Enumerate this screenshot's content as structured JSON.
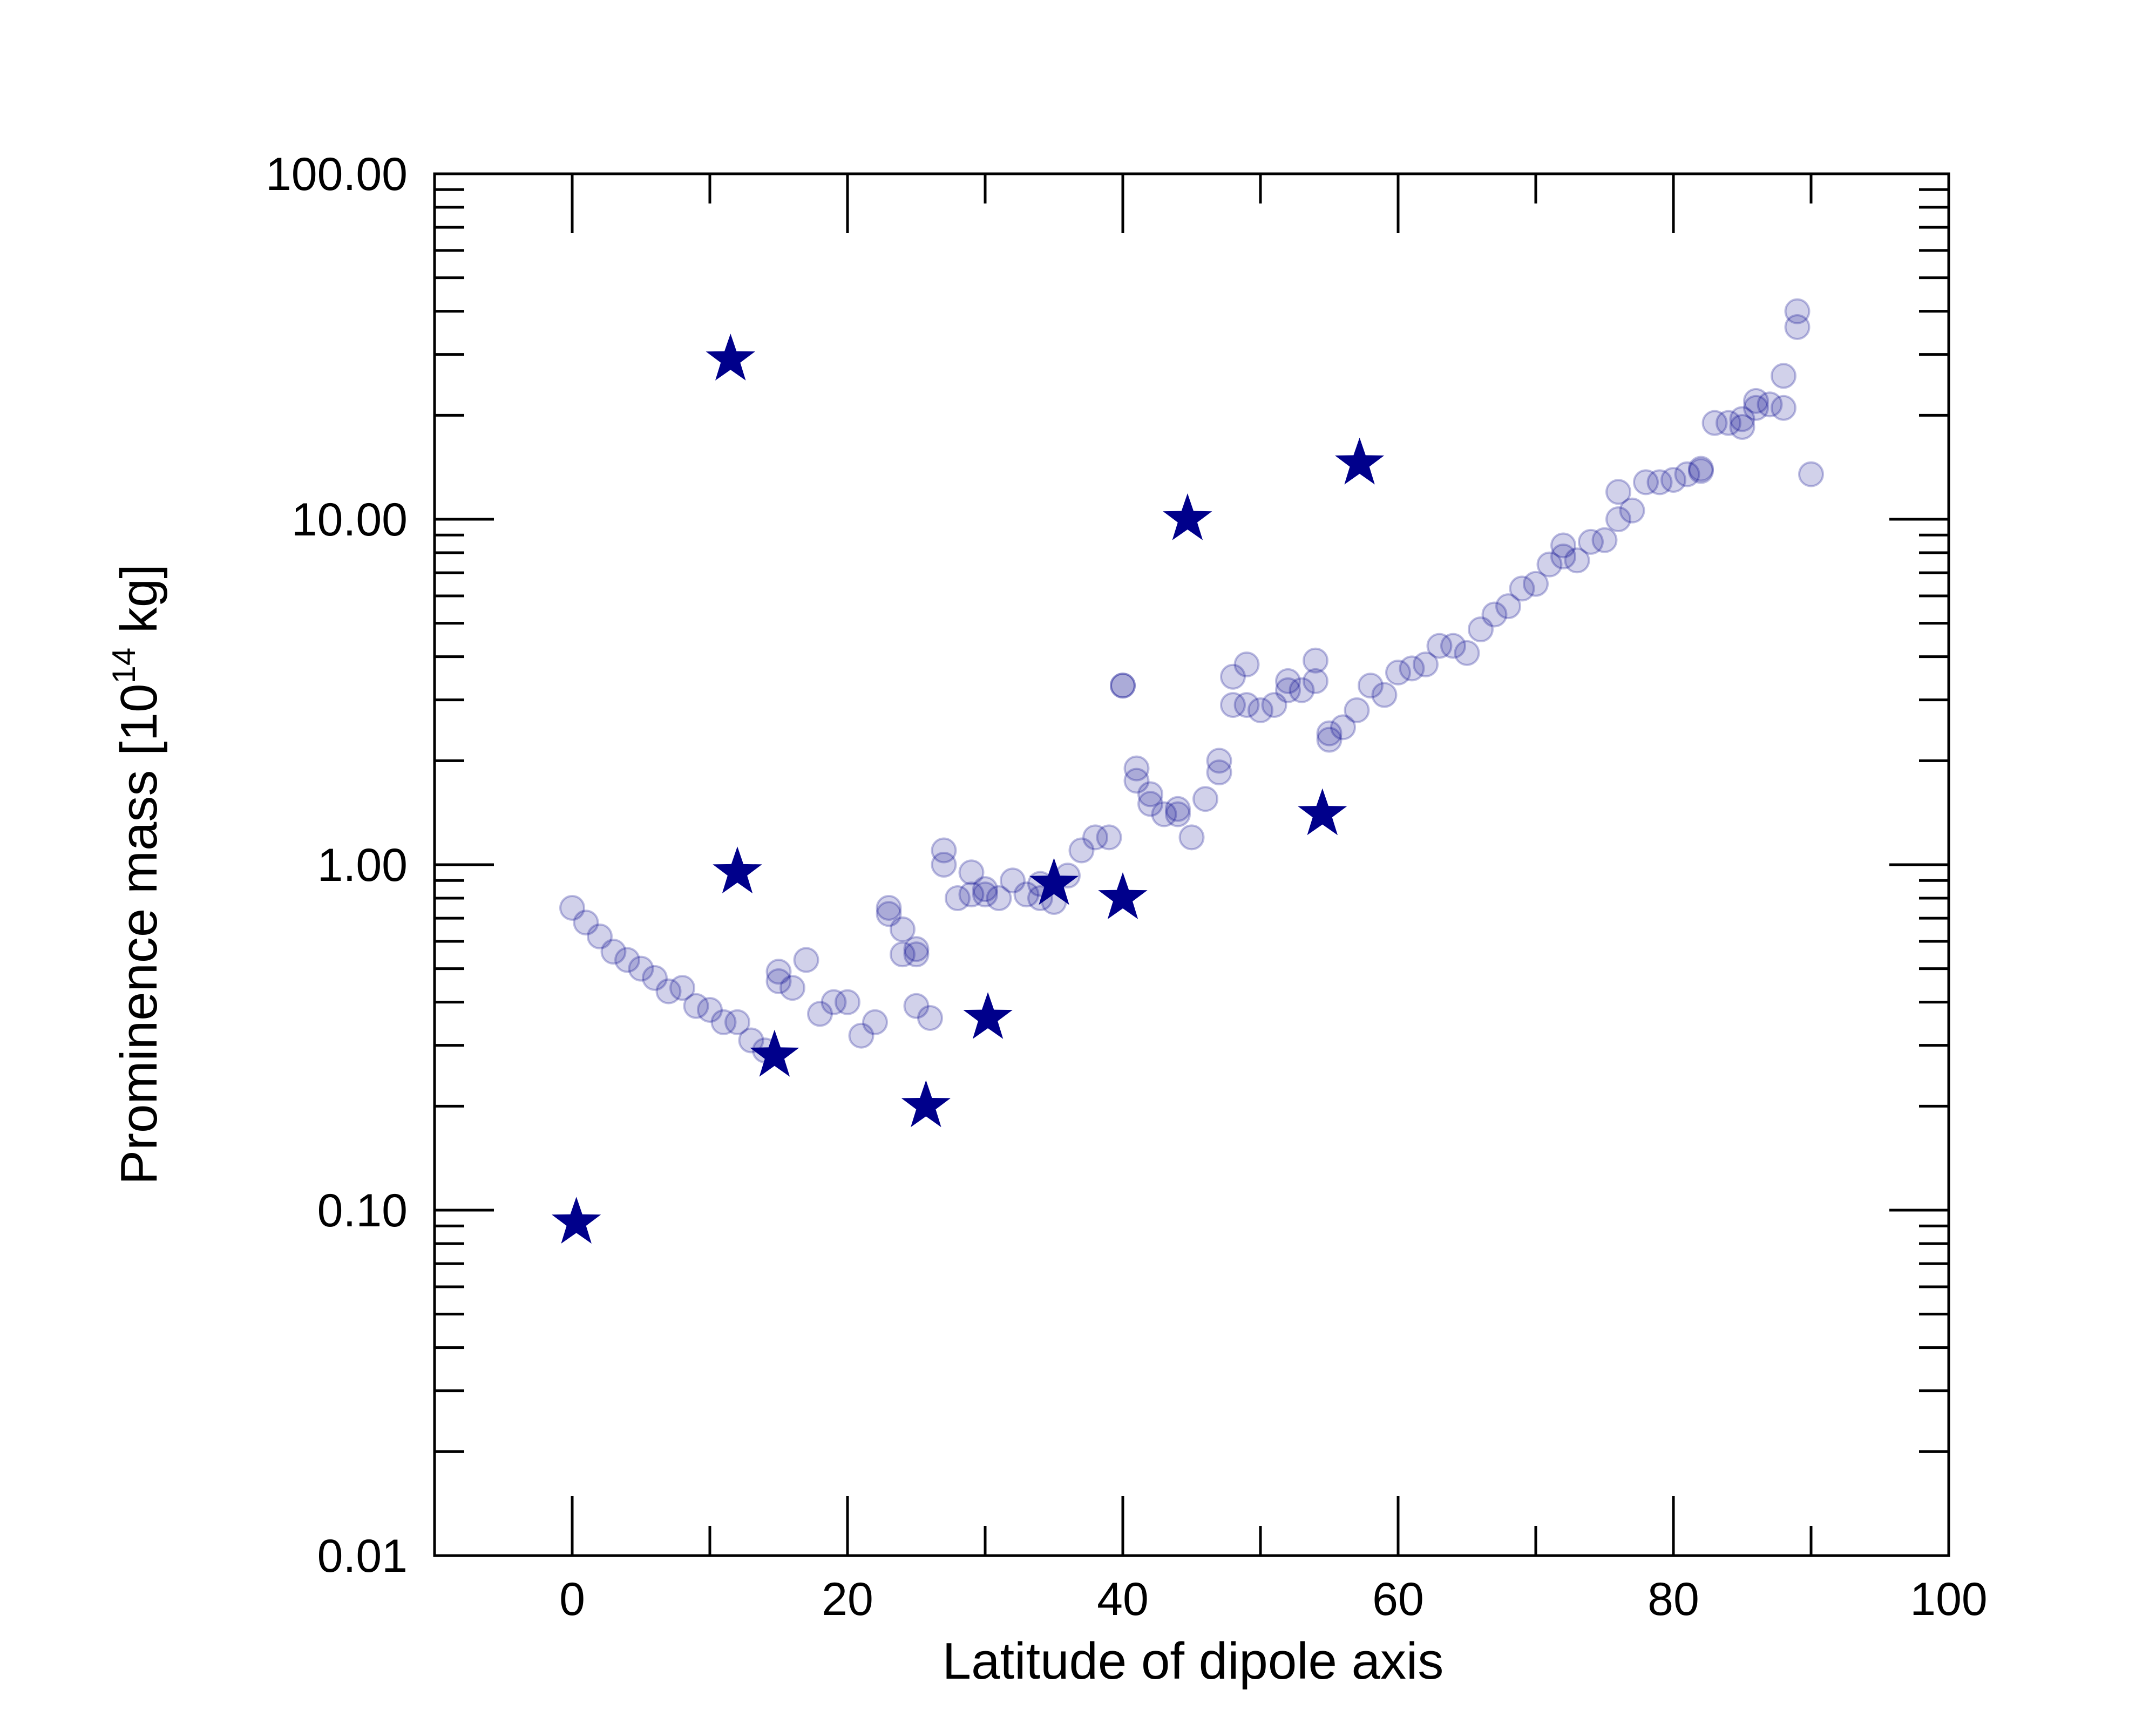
{
  "chart_data": {
    "type": "scatter",
    "xlabel": "Latitude of dipole axis",
    "ylabel_main": "Prominence mass [10",
    "ylabel_sup": "14",
    "ylabel_unit": " kg]",
    "xlim": [
      -10,
      100
    ],
    "ylim": [
      0.01,
      100
    ],
    "yscale": "log",
    "x_ticks": [
      0,
      20,
      40,
      60,
      80,
      100
    ],
    "x_tick_labels": [
      "0",
      "20",
      "40",
      "60",
      "80",
      "100"
    ],
    "y_ticks": [
      0.01,
      0.1,
      1,
      10,
      100
    ],
    "y_tick_labels": [
      "0.01",
      "0.10",
      "1.00",
      "10.00",
      "100.00"
    ],
    "grid": false,
    "colors": {
      "circles": "#00008b",
      "stars": "#00008b",
      "axis": "#000000"
    },
    "series": [
      {
        "marker": "circle",
        "points": [
          [
            0,
            0.75
          ],
          [
            1,
            0.68
          ],
          [
            2,
            0.62
          ],
          [
            3,
            0.56
          ],
          [
            4,
            0.53
          ],
          [
            5,
            0.5
          ],
          [
            6,
            0.47
          ],
          [
            7,
            0.43
          ],
          [
            8,
            0.44
          ],
          [
            9,
            0.39
          ],
          [
            10,
            0.38
          ],
          [
            11,
            0.35
          ],
          [
            12,
            0.35
          ],
          [
            13,
            0.31
          ],
          [
            14,
            0.29
          ],
          [
            15,
            0.49
          ],
          [
            15,
            0.46
          ],
          [
            16,
            0.44
          ],
          [
            17,
            0.53
          ],
          [
            18,
            0.37
          ],
          [
            19,
            0.4
          ],
          [
            20,
            0.4
          ],
          [
            21,
            0.32
          ],
          [
            22,
            0.35
          ],
          [
            23,
            0.75
          ],
          [
            23,
            0.72
          ],
          [
            24,
            0.55
          ],
          [
            24,
            0.65
          ],
          [
            25,
            0.57
          ],
          [
            25,
            0.55
          ],
          [
            25,
            0.39
          ],
          [
            26,
            0.36
          ],
          [
            27,
            1.1
          ],
          [
            27,
            1.0
          ],
          [
            28,
            0.8
          ],
          [
            29,
            0.95
          ],
          [
            29,
            0.82
          ],
          [
            30,
            0.82
          ],
          [
            30,
            0.85
          ],
          [
            31,
            0.8
          ],
          [
            32,
            0.9
          ],
          [
            33,
            0.82
          ],
          [
            34,
            0.88
          ],
          [
            34,
            0.8
          ],
          [
            35,
            0.78
          ],
          [
            36,
            0.93
          ],
          [
            37,
            1.1
          ],
          [
            38,
            1.2
          ],
          [
            39,
            1.2
          ],
          [
            40,
            3.3
          ],
          [
            40,
            3.3
          ],
          [
            41,
            1.9
          ],
          [
            41,
            1.75
          ],
          [
            42,
            1.6
          ],
          [
            42,
            1.5
          ],
          [
            43,
            1.4
          ],
          [
            44,
            1.45
          ],
          [
            44,
            1.4
          ],
          [
            45,
            1.2
          ],
          [
            46,
            1.55
          ],
          [
            47,
            2.0
          ],
          [
            47,
            1.85
          ],
          [
            48,
            3.5
          ],
          [
            48,
            2.9
          ],
          [
            49,
            3.8
          ],
          [
            49,
            2.9
          ],
          [
            50,
            2.8
          ],
          [
            51,
            2.9
          ],
          [
            52,
            3.2
          ],
          [
            52,
            3.4
          ],
          [
            53,
            3.2
          ],
          [
            54,
            3.4
          ],
          [
            54,
            3.9
          ],
          [
            55,
            2.3
          ],
          [
            55,
            2.4
          ],
          [
            56,
            2.5
          ],
          [
            57,
            2.8
          ],
          [
            58,
            3.3
          ],
          [
            59,
            3.1
          ],
          [
            60,
            3.6
          ],
          [
            61,
            3.7
          ],
          [
            62,
            3.8
          ],
          [
            63,
            4.3
          ],
          [
            64,
            4.3
          ],
          [
            65,
            4.1
          ],
          [
            66,
            4.8
          ],
          [
            67,
            5.3
          ],
          [
            68,
            5.6
          ],
          [
            69,
            6.3
          ],
          [
            70,
            6.5
          ],
          [
            71,
            7.4
          ],
          [
            72,
            8.4
          ],
          [
            72,
            7.8
          ],
          [
            73,
            7.6
          ],
          [
            74,
            8.6
          ],
          [
            75,
            8.7
          ],
          [
            76,
            10.0
          ],
          [
            76,
            12.0
          ],
          [
            77,
            10.6
          ],
          [
            78,
            12.8
          ],
          [
            79,
            12.8
          ],
          [
            80,
            13.0
          ],
          [
            81,
            13.5
          ],
          [
            82,
            14.0
          ],
          [
            82,
            13.8
          ],
          [
            83,
            19.0
          ],
          [
            84,
            19.0
          ],
          [
            85,
            19.5
          ],
          [
            85,
            18.5
          ],
          [
            86,
            21.0
          ],
          [
            86,
            22.0
          ],
          [
            87,
            21.5
          ],
          [
            88,
            26.0
          ],
          [
            88,
            21.0
          ],
          [
            89,
            40.0
          ],
          [
            89,
            36.0
          ],
          [
            90,
            13.5
          ]
        ]
      },
      {
        "marker": "star",
        "points": [
          [
            0.3,
            0.092
          ],
          [
            11.5,
            29.0
          ],
          [
            12.0,
            0.95
          ],
          [
            14.7,
            0.28
          ],
          [
            25.7,
            0.2
          ],
          [
            30.2,
            0.36
          ],
          [
            35.0,
            0.88
          ],
          [
            40.0,
            0.8
          ],
          [
            44.7,
            10.0
          ],
          [
            54.5,
            1.4
          ],
          [
            57.2,
            14.5
          ]
        ]
      }
    ]
  }
}
